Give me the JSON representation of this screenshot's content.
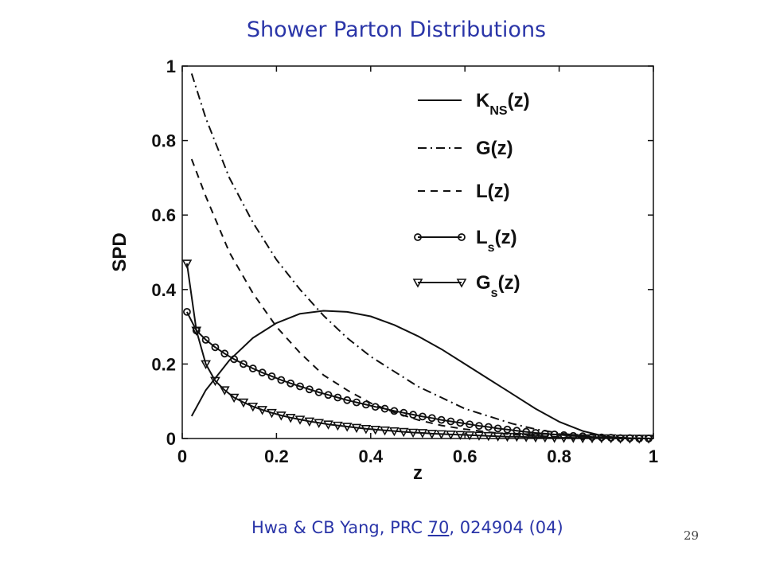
{
  "slide": {
    "title": "Shower Parton Distributions",
    "citation_prefix": "Hwa & CB Yang, PRC ",
    "citation_volume": "70",
    "citation_suffix": ", 024904 (04)",
    "page_number": "29"
  },
  "chart_data": {
    "type": "line",
    "title": "",
    "xlabel": "z",
    "ylabel": "SPD",
    "xlim": [
      0,
      1
    ],
    "ylim": [
      0,
      1
    ],
    "x_ticks": [
      "0",
      "0.2",
      "0.4",
      "0.6",
      "0.8",
      "1"
    ],
    "y_ticks": [
      "0",
      "0.2",
      "0.4",
      "0.6",
      "0.8",
      "1"
    ],
    "grid": false,
    "legend_position": "top-right",
    "series": [
      {
        "name": "K_NS(z)",
        "label_main": "K",
        "label_sub": "NS",
        "label_tail": "(z)",
        "style": "solid",
        "marker": "none",
        "x": [
          0.02,
          0.05,
          0.1,
          0.15,
          0.2,
          0.25,
          0.3,
          0.35,
          0.4,
          0.45,
          0.5,
          0.55,
          0.6,
          0.65,
          0.7,
          0.75,
          0.8,
          0.85,
          0.9,
          0.95,
          1.0
        ],
        "y": [
          0.06,
          0.13,
          0.21,
          0.27,
          0.31,
          0.335,
          0.343,
          0.34,
          0.328,
          0.305,
          0.275,
          0.24,
          0.2,
          0.16,
          0.12,
          0.08,
          0.045,
          0.02,
          0.005,
          0.001,
          0.0
        ]
      },
      {
        "name": "G(z)",
        "label_main": "G",
        "label_sub": "",
        "label_tail": "(z)",
        "style": "dashdot",
        "marker": "none",
        "x": [
          0.02,
          0.05,
          0.1,
          0.15,
          0.2,
          0.25,
          0.3,
          0.35,
          0.4,
          0.45,
          0.5,
          0.55,
          0.6,
          0.65,
          0.7,
          0.75,
          0.8,
          0.85,
          0.9,
          0.95,
          1.0
        ],
        "y": [
          0.98,
          0.86,
          0.7,
          0.58,
          0.48,
          0.4,
          0.33,
          0.27,
          0.22,
          0.18,
          0.14,
          0.11,
          0.08,
          0.06,
          0.04,
          0.025,
          0.014,
          0.007,
          0.003,
          0.001,
          0.0
        ]
      },
      {
        "name": "L(z)",
        "label_main": "L",
        "label_sub": "",
        "label_tail": "(z)",
        "style": "dashed",
        "marker": "none",
        "x": [
          0.02,
          0.05,
          0.1,
          0.15,
          0.2,
          0.25,
          0.3,
          0.35,
          0.4,
          0.45,
          0.5,
          0.55,
          0.6,
          0.65,
          0.7,
          0.75,
          0.8,
          0.85,
          0.9,
          0.95,
          1.0
        ],
        "y": [
          0.75,
          0.65,
          0.5,
          0.39,
          0.3,
          0.23,
          0.17,
          0.13,
          0.095,
          0.07,
          0.05,
          0.035,
          0.025,
          0.017,
          0.011,
          0.007,
          0.004,
          0.002,
          0.001,
          0.0,
          0.0
        ]
      },
      {
        "name": "L_s(z)",
        "label_main": "L",
        "label_sub": "s",
        "label_tail": "(z)",
        "style": "solid",
        "marker": "circle",
        "x": [
          0.01,
          0.03,
          0.05,
          0.07,
          0.09,
          0.11,
          0.13,
          0.15,
          0.17,
          0.19,
          0.21,
          0.23,
          0.25,
          0.27,
          0.29,
          0.31,
          0.33,
          0.35,
          0.37,
          0.39,
          0.41,
          0.43,
          0.45,
          0.47,
          0.49,
          0.51,
          0.53,
          0.55,
          0.57,
          0.59,
          0.61,
          0.63,
          0.65,
          0.67,
          0.69,
          0.71,
          0.73,
          0.75,
          0.77,
          0.79,
          0.81,
          0.83,
          0.85,
          0.87,
          0.89,
          0.91,
          0.93,
          0.95,
          0.97,
          0.99
        ],
        "y": [
          0.34,
          0.29,
          0.265,
          0.245,
          0.228,
          0.213,
          0.2,
          0.188,
          0.177,
          0.167,
          0.157,
          0.148,
          0.14,
          0.132,
          0.124,
          0.117,
          0.11,
          0.103,
          0.097,
          0.091,
          0.085,
          0.08,
          0.074,
          0.069,
          0.064,
          0.059,
          0.055,
          0.05,
          0.046,
          0.042,
          0.038,
          0.034,
          0.031,
          0.027,
          0.024,
          0.021,
          0.018,
          0.015,
          0.013,
          0.011,
          0.009,
          0.007,
          0.006,
          0.004,
          0.003,
          0.002,
          0.001,
          0.001,
          0.0,
          0.0
        ]
      },
      {
        "name": "G_s(z)",
        "label_main": "G",
        "label_sub": "s",
        "label_tail": "(z)",
        "style": "solid",
        "marker": "triangle-down",
        "x": [
          0.01,
          0.03,
          0.05,
          0.07,
          0.09,
          0.11,
          0.13,
          0.15,
          0.17,
          0.19,
          0.21,
          0.23,
          0.25,
          0.27,
          0.29,
          0.31,
          0.33,
          0.35,
          0.37,
          0.39,
          0.41,
          0.43,
          0.45,
          0.47,
          0.49,
          0.51,
          0.53,
          0.55,
          0.57,
          0.59,
          0.61,
          0.63,
          0.65,
          0.67,
          0.69,
          0.71,
          0.73,
          0.75,
          0.77,
          0.79,
          0.81,
          0.83,
          0.85,
          0.87,
          0.89,
          0.91,
          0.93,
          0.95,
          0.97,
          0.99
        ],
        "y": [
          0.47,
          0.29,
          0.2,
          0.155,
          0.13,
          0.11,
          0.097,
          0.086,
          0.077,
          0.069,
          0.062,
          0.056,
          0.051,
          0.046,
          0.042,
          0.038,
          0.035,
          0.032,
          0.029,
          0.026,
          0.024,
          0.022,
          0.02,
          0.018,
          0.016,
          0.015,
          0.013,
          0.012,
          0.011,
          0.01,
          0.009,
          0.008,
          0.007,
          0.006,
          0.005,
          0.005,
          0.004,
          0.003,
          0.003,
          0.002,
          0.002,
          0.002,
          0.001,
          0.001,
          0.001,
          0.001,
          0.0,
          0.0,
          0.0,
          0.0
        ]
      }
    ]
  }
}
